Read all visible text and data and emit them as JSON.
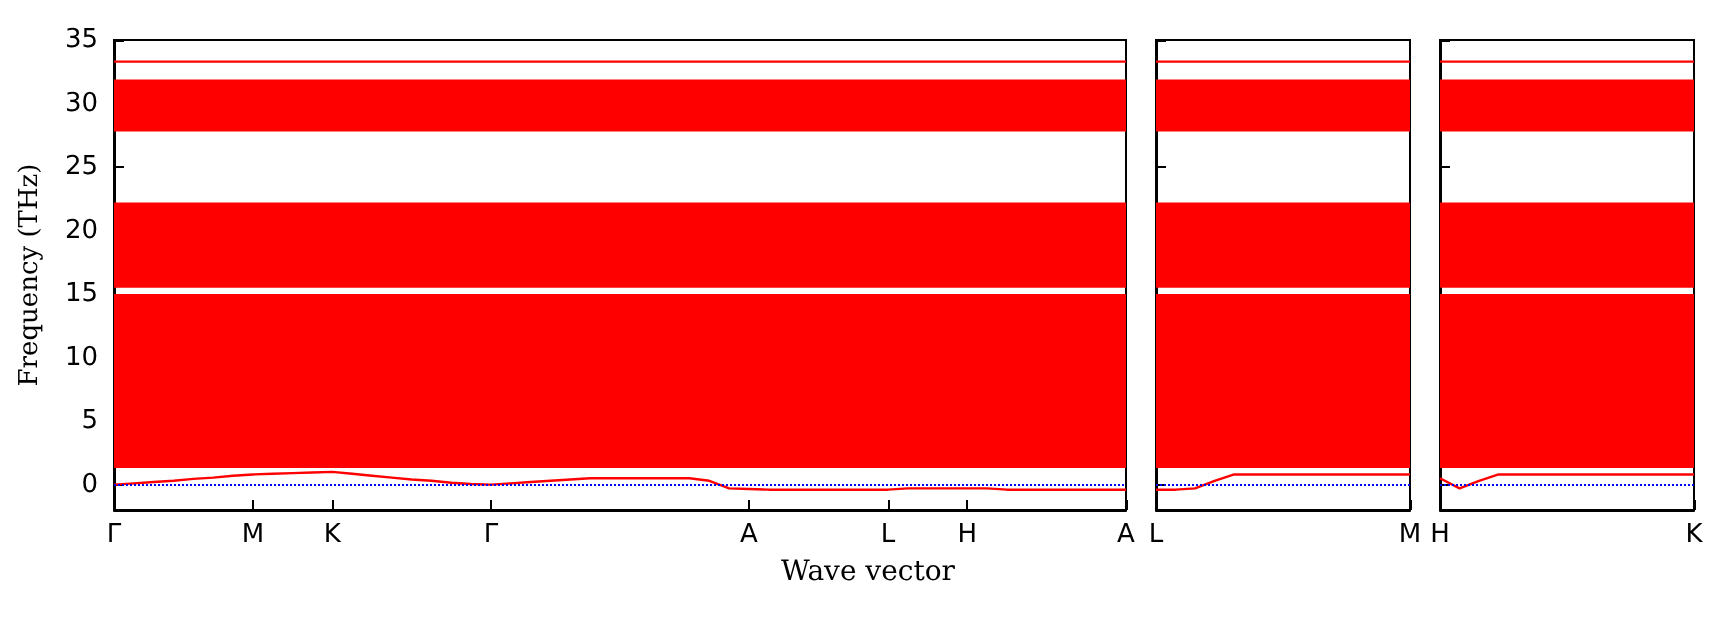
{
  "chart_data": [
    {
      "type": "line",
      "xlabel": "Wave vector",
      "ylabel": "Frequency (THz)",
      "categories": [
        "Γ",
        null,
        null,
        null,
        null,
        null,
        null,
        "M",
        null,
        null,
        null,
        "K",
        null,
        null,
        null,
        null,
        null,
        null,
        null,
        "Γ",
        null,
        null,
        null,
        null,
        null,
        null,
        null,
        null,
        null,
        null,
        null,
        null,
        "A",
        null,
        null,
        null,
        null,
        null,
        null,
        "L",
        null,
        null,
        null,
        "H",
        null,
        null,
        null,
        null,
        null,
        null,
        null,
        "A"
      ],
      "ylim": [
        -2,
        35
      ],
      "yticks": [
        0,
        5,
        10,
        15,
        20,
        25,
        30,
        35
      ],
      "grid": false,
      "marker": "none",
      "line_style": "solid",
      "series": [
        {
          "color": "#ff0000",
          "values": [
            0,
            0.1,
            0.2,
            0.3,
            0.45,
            0.55,
            0.7,
            0.8,
            0.85,
            0.9,
            0.95,
            1.0,
            0.85,
            0.7,
            0.55,
            0.4,
            0.3,
            0.15,
            0.05,
            0,
            0.1,
            0.2,
            0.3,
            0.4,
            0.5,
            0.5,
            0.5,
            0.5,
            0.5,
            0.5,
            0.3,
            -0.3,
            -0.35,
            -0.4,
            -0.4,
            -0.4,
            -0.4,
            -0.4,
            -0.4,
            -0.4,
            -0.3,
            -0.3,
            -0.3,
            -0.3,
            -0.3,
            -0.4,
            -0.4,
            -0.4,
            -0.4,
            -0.4,
            -0.4,
            -0.4
          ]
        },
        {
          "color": "#ff0000",
          "values": [
            33.3,
            33.3,
            33.3,
            33.3,
            33.3,
            33.3,
            33.3,
            33.3,
            33.3,
            33.3,
            33.3,
            33.3,
            33.3,
            33.3,
            33.3,
            33.3,
            33.3,
            33.3,
            33.3,
            33.3,
            33.3,
            33.3,
            33.3,
            33.3,
            33.3,
            33.3,
            33.3,
            33.3,
            33.3,
            33.3,
            33.3,
            33.3,
            33.3,
            33.3,
            33.3,
            33.3,
            33.3,
            33.3,
            33.3,
            33.3,
            33.3,
            33.3,
            33.3,
            33.3,
            33.3,
            33.3,
            33.3,
            33.3,
            33.3,
            33.3,
            33.3,
            33.3
          ]
        }
      ],
      "bands": [
        {
          "axis": "y",
          "from": 1.3,
          "to": 15,
          "color": "#ff0000"
        },
        {
          "axis": "y",
          "from": 15.5,
          "to": 22.2,
          "color": "#ff0000"
        },
        {
          "axis": "y",
          "from": 27.8,
          "to": 31.9,
          "color": "#ff0000"
        }
      ],
      "ref_lines": [
        {
          "axis": "y",
          "value": 0,
          "color": "#0000ff",
          "line_style": "dotted"
        }
      ]
    },
    {
      "type": "line",
      "categories": [
        "L",
        null,
        null,
        null,
        null,
        null,
        null,
        null,
        null,
        null,
        null,
        null,
        null,
        "M"
      ],
      "ylim": [
        -2,
        35
      ],
      "yticks": [
        0,
        5,
        10,
        15,
        20,
        25,
        30,
        35
      ],
      "tick_labels": "x",
      "grid": false,
      "marker": "none",
      "line_style": "solid",
      "series": [
        {
          "color": "#ff0000",
          "values": [
            -0.4,
            -0.4,
            -0.3,
            0.3,
            0.8,
            0.8,
            0.8,
            0.8,
            0.8,
            0.8,
            0.8,
            0.8,
            0.8,
            0.8
          ]
        },
        {
          "color": "#ff0000",
          "values": [
            33.3,
            33.3,
            33.3,
            33.3,
            33.3,
            33.3,
            33.3,
            33.3,
            33.3,
            33.3,
            33.3,
            33.3,
            33.3,
            33.3
          ]
        }
      ],
      "bands": [
        {
          "axis": "y",
          "from": 1.3,
          "to": 15,
          "color": "#ff0000"
        },
        {
          "axis": "y",
          "from": 15.5,
          "to": 22.2,
          "color": "#ff0000"
        },
        {
          "axis": "y",
          "from": 27.8,
          "to": 31.9,
          "color": "#ff0000"
        }
      ],
      "ref_lines": [
        {
          "axis": "y",
          "value": 0,
          "color": "#0000ff",
          "line_style": "dotted"
        }
      ]
    },
    {
      "type": "line",
      "categories": [
        "H",
        null,
        null,
        null,
        null,
        null,
        null,
        null,
        null,
        null,
        null,
        null,
        null,
        "K"
      ],
      "ylim": [
        -2,
        35
      ],
      "yticks": [
        0,
        5,
        10,
        15,
        20,
        25,
        30,
        35
      ],
      "tick_labels": "x",
      "grid": false,
      "marker": "none",
      "line_style": "solid",
      "series": [
        {
          "color": "#ff0000",
          "values": [
            0.5,
            -0.3,
            0.3,
            0.8,
            0.8,
            0.8,
            0.8,
            0.8,
            0.8,
            0.8,
            0.8,
            0.8,
            0.8,
            0.8
          ]
        },
        {
          "color": "#ff0000",
          "values": [
            33.3,
            33.3,
            33.3,
            33.3,
            33.3,
            33.3,
            33.3,
            33.3,
            33.3,
            33.3,
            33.3,
            33.3,
            33.3,
            33.3
          ]
        }
      ],
      "bands": [
        {
          "axis": "y",
          "from": 1.3,
          "to": 15,
          "color": "#ff0000"
        },
        {
          "axis": "y",
          "from": 15.5,
          "to": 22.2,
          "color": "#ff0000"
        },
        {
          "axis": "y",
          "from": 27.8,
          "to": 31.9,
          "color": "#ff0000"
        }
      ],
      "ref_lines": [
        {
          "axis": "y",
          "value": 0,
          "color": "#0000ff",
          "line_style": "dotted"
        }
      ]
    }
  ]
}
